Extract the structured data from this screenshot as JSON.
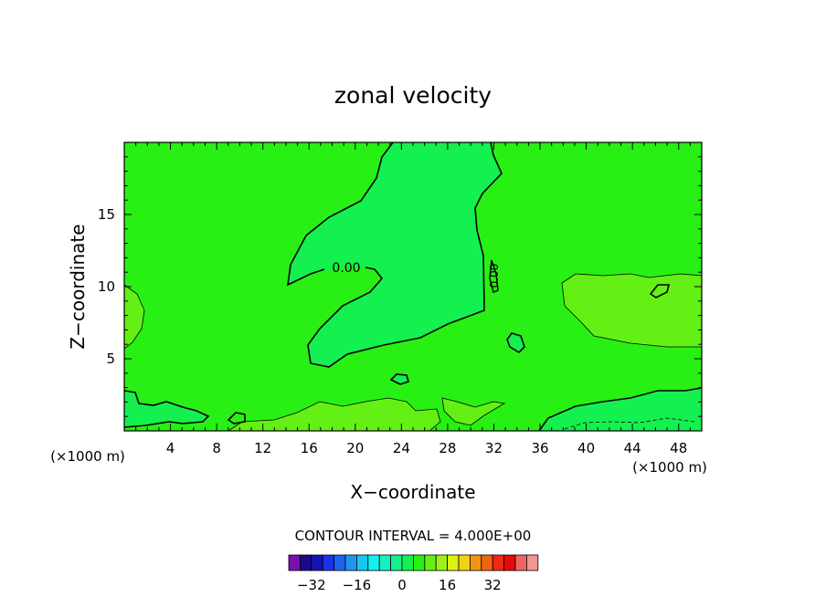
{
  "chart_data": {
    "type": "heatmap",
    "title": "zonal velocity",
    "xlabel": "X−coordinate",
    "ylabel": "Z−coordinate",
    "x_unit_left": "(×1000 m)",
    "x_unit_right": "(×1000 m)",
    "xlim": [
      0,
      50
    ],
    "ylim": [
      0,
      20
    ],
    "x_ticks": [
      4,
      8,
      12,
      16,
      20,
      24,
      28,
      32,
      36,
      40,
      44,
      48
    ],
    "y_ticks": [
      5,
      10,
      15
    ],
    "contour_label": "0.00",
    "contour_interval_text": "CONTOUR INTERVAL = 4.000E+00",
    "colorbar": {
      "levels": [
        -36,
        -32,
        -28,
        -24,
        -20,
        -16,
        -12,
        -8,
        -4,
        0,
        4,
        8,
        12,
        16,
        20,
        24,
        28,
        32,
        36
      ],
      "tick_values": [
        -32,
        -16,
        0,
        16,
        32
      ],
      "tick_labels": [
        "−32",
        "−16",
        "0",
        "16",
        "32"
      ],
      "colors": [
        "#7a0fb0",
        "#1b0a8c",
        "#1414b4",
        "#1c32e6",
        "#1e64f0",
        "#1e96f0",
        "#14c8f0",
        "#14f0f0",
        "#14f0be",
        "#14f08c",
        "#14f050",
        "#28f014",
        "#64f014",
        "#a0f014",
        "#dcf014",
        "#f0d214",
        "#f09614",
        "#f06414",
        "#f02814",
        "#e60a0a",
        "#f06464",
        "#f09696"
      ]
    },
    "fields": {
      "background_color": "#28f014",
      "negative_region_color": "#14f050",
      "positive_region_color": "#64f014"
    }
  }
}
